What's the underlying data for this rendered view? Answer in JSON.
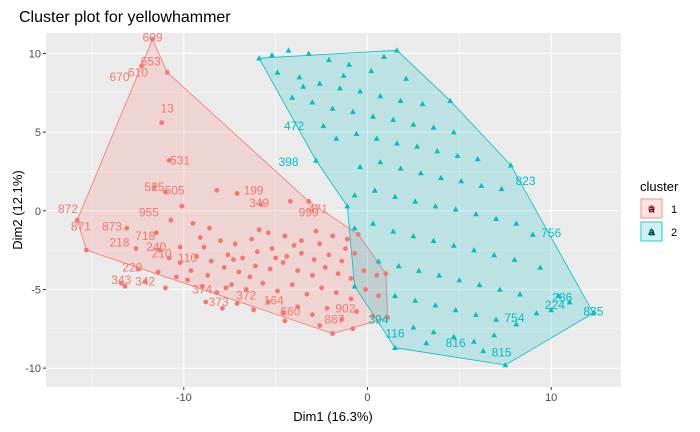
{
  "chart_data": {
    "type": "scatter",
    "title": "Cluster plot for yellowhammer",
    "xlabel": "Dim1 (16.3%)",
    "ylabel": "Dim2 (12.1%)",
    "xlim": [
      -17.5,
      13.8
    ],
    "ylim": [
      -11.2,
      11.3
    ],
    "xticks": [
      -10,
      0,
      10
    ],
    "yticks": [
      -10,
      -5,
      0,
      5,
      10
    ],
    "grid": true,
    "legend": {
      "title": "cluster",
      "position": "right",
      "entries": [
        "1",
        "2"
      ]
    },
    "colors": {
      "cluster1": "#F8766D",
      "cluster2": "#00BFC4",
      "panel": "#EBEBEB",
      "grid": "#FFFFFF"
    },
    "hulls": [
      {
        "cluster": "1",
        "points": [
          [
            -15.8,
            -0.6
          ],
          [
            -11.7,
            10.9
          ],
          [
            -10.9,
            8.8
          ],
          [
            -3.2,
            0.6
          ],
          [
            -0.5,
            -1.5
          ],
          [
            1.0,
            -4.0
          ],
          [
            1.1,
            -6.8
          ],
          [
            -1.9,
            -7.8
          ],
          [
            -15.3,
            -2.5
          ]
        ]
      },
      {
        "cluster": "2",
        "points": [
          [
            -5.9,
            9.7
          ],
          [
            1.6,
            10.2
          ],
          [
            4.5,
            7.0
          ],
          [
            7.8,
            2.9
          ],
          [
            12.3,
            -6.5
          ],
          [
            7.5,
            -9.8
          ],
          [
            1.5,
            -8.7
          ],
          [
            -0.7,
            -4.8
          ],
          [
            -1.1,
            0.3
          ],
          [
            -2.8,
            3.2
          ]
        ]
      }
    ],
    "series": [
      {
        "name": "1",
        "shape": "circle",
        "points": [
          [
            -15.8,
            -0.6
          ],
          [
            -11.7,
            10.9
          ],
          [
            -10.9,
            8.8
          ],
          [
            -12.3,
            9.2
          ],
          [
            -11.2,
            5.6
          ],
          [
            -10.8,
            3.2
          ],
          [
            -11.6,
            1.5
          ],
          [
            -11.0,
            1.2
          ],
          [
            -10.1,
            0.3
          ],
          [
            -8.2,
            1.3
          ],
          [
            -7.1,
            1.1
          ],
          [
            -5.8,
            0.4
          ],
          [
            -4.2,
            0.6
          ],
          [
            -3.2,
            0.6
          ],
          [
            -13.1,
            -1.1
          ],
          [
            -11.5,
            -1.4
          ],
          [
            -10.7,
            -0.6
          ],
          [
            -9.5,
            -0.8
          ],
          [
            -8.6,
            -1.1
          ],
          [
            -15.3,
            -2.5
          ],
          [
            -12.6,
            -2.4
          ],
          [
            -11.3,
            -2.5
          ],
          [
            -10.2,
            -2.3
          ],
          [
            -9.1,
            -1.7
          ],
          [
            -8.0,
            -1.9
          ],
          [
            -7.2,
            -2.1
          ],
          [
            -6.3,
            -1.8
          ],
          [
            -5.4,
            -1.4
          ],
          [
            -4.5,
            -1.6
          ],
          [
            -3.6,
            -1.9
          ],
          [
            -2.8,
            -1.3
          ],
          [
            -1.9,
            -1.6
          ],
          [
            -1.1,
            -1.8
          ],
          [
            -0.5,
            -1.5
          ],
          [
            -12.5,
            -3.7
          ],
          [
            -11.4,
            -3.9
          ],
          [
            -10.2,
            -3.3
          ],
          [
            -9.3,
            -2.9
          ],
          [
            -8.5,
            -3.2
          ],
          [
            -7.6,
            -2.8
          ],
          [
            -6.8,
            -3.0
          ],
          [
            -6.0,
            -2.6
          ],
          [
            -5.2,
            -2.4
          ],
          [
            -4.4,
            -2.9
          ],
          [
            -3.6,
            -2.7
          ],
          [
            -2.9,
            -3.1
          ],
          [
            -2.1,
            -2.8
          ],
          [
            -1.4,
            -3.2
          ],
          [
            -0.7,
            -2.7
          ],
          [
            -13.4,
            -4.6
          ],
          [
            -12.1,
            -4.5
          ],
          [
            -10.4,
            -4.2
          ],
          [
            -9.6,
            -3.8
          ],
          [
            -8.7,
            -4.1
          ],
          [
            -7.8,
            -3.6
          ],
          [
            -7.0,
            -3.9
          ],
          [
            -6.1,
            -3.5
          ],
          [
            -5.3,
            -3.7
          ],
          [
            -4.6,
            -3.3
          ],
          [
            -3.8,
            -3.8
          ],
          [
            -3.0,
            -4.1
          ],
          [
            -2.3,
            -3.6
          ],
          [
            -1.6,
            -4.0
          ],
          [
            -0.9,
            -4.3
          ],
          [
            -0.2,
            -3.8
          ],
          [
            0.5,
            -4.1
          ],
          [
            1.0,
            -4.0
          ],
          [
            -13.2,
            -4.8
          ],
          [
            -11.0,
            -4.9
          ],
          [
            -9.0,
            -4.8
          ],
          [
            -8.2,
            -5.2
          ],
          [
            -7.4,
            -4.7
          ],
          [
            -6.6,
            -5.0
          ],
          [
            -5.7,
            -4.6
          ],
          [
            -4.9,
            -5.1
          ],
          [
            -4.1,
            -4.7
          ],
          [
            -3.3,
            -5.3
          ],
          [
            -2.5,
            -4.9
          ],
          [
            -1.7,
            -5.2
          ],
          [
            -0.9,
            -5.6
          ],
          [
            -0.1,
            -5.0
          ],
          [
            0.6,
            -5.4
          ],
          [
            -8.8,
            -5.8
          ],
          [
            -7.9,
            -6.2
          ],
          [
            -7.1,
            -5.9
          ],
          [
            -6.2,
            -6.3
          ],
          [
            -5.4,
            -5.8
          ],
          [
            -4.6,
            -6.5
          ],
          [
            -3.8,
            -6.1
          ],
          [
            -3.0,
            -6.6
          ],
          [
            -2.2,
            -6.2
          ],
          [
            -1.4,
            -6.9
          ],
          [
            -0.6,
            -6.4
          ],
          [
            0.3,
            -6.7
          ],
          [
            1.1,
            -6.8
          ],
          [
            -4.5,
            -7.0
          ],
          [
            -2.6,
            -7.3
          ],
          [
            -1.9,
            -7.8
          ],
          [
            -0.8,
            -7.5
          ],
          [
            -9.8,
            -4.4
          ],
          [
            -7.3,
            -3.1
          ],
          [
            -6.4,
            -4.2
          ],
          [
            -5.0,
            -3.0
          ],
          [
            -4.0,
            -2.2
          ],
          [
            -2.6,
            -2.1
          ],
          [
            -1.2,
            -2.4
          ],
          [
            -5.9,
            -1.2
          ],
          [
            -8.9,
            -2.3
          ],
          [
            -10.8,
            -3.0
          ],
          [
            -7.7,
            -4.9
          ]
        ],
        "labels": [
          {
            "text": "609",
            "x": -11.7,
            "y": 11.0
          },
          {
            "text": "653",
            "x": -11.8,
            "y": 9.5
          },
          {
            "text": "670",
            "x": -13.5,
            "y": 8.5
          },
          {
            "text": "610",
            "x": -12.5,
            "y": 8.8
          },
          {
            "text": "13",
            "x": -10.9,
            "y": 6.5
          },
          {
            "text": "531",
            "x": -10.2,
            "y": 3.2
          },
          {
            "text": "525",
            "x": -11.6,
            "y": 1.5
          },
          {
            "text": "505",
            "x": -10.5,
            "y": 1.3
          },
          {
            "text": "872",
            "x": -16.3,
            "y": 0.1
          },
          {
            "text": "871",
            "x": -15.6,
            "y": -1.0
          },
          {
            "text": "873",
            "x": -13.9,
            "y": -1.0
          },
          {
            "text": "218",
            "x": -13.5,
            "y": -2.0
          },
          {
            "text": "955",
            "x": -11.9,
            "y": -0.1
          },
          {
            "text": "718",
            "x": -12.1,
            "y": -1.6
          },
          {
            "text": "220",
            "x": -12.8,
            "y": -3.6
          },
          {
            "text": "343",
            "x": -13.4,
            "y": -4.4
          },
          {
            "text": "342",
            "x": -12.1,
            "y": -4.5
          },
          {
            "text": "240",
            "x": -11.5,
            "y": -2.3
          },
          {
            "text": "210",
            "x": -11.2,
            "y": -2.7
          },
          {
            "text": "199",
            "x": -6.2,
            "y": 1.3
          },
          {
            "text": "349",
            "x": -5.9,
            "y": 0.5
          },
          {
            "text": "110",
            "x": -9.8,
            "y": -3.0
          },
          {
            "text": "373",
            "x": -8.1,
            "y": -5.8
          },
          {
            "text": "372",
            "x": -6.6,
            "y": -5.4
          },
          {
            "text": "164",
            "x": -5.1,
            "y": -5.7
          },
          {
            "text": "902",
            "x": -1.2,
            "y": -6.2
          },
          {
            "text": "887",
            "x": -1.8,
            "y": -6.9
          },
          {
            "text": "999",
            "x": -3.2,
            "y": -0.1
          },
          {
            "text": "471",
            "x": -2.7,
            "y": 0.1
          },
          {
            "text": "374",
            "x": -9.0,
            "y": -5.0
          },
          {
            "text": "660",
            "x": -4.2,
            "y": -6.4
          }
        ]
      },
      {
        "name": "2",
        "shape": "triangle",
        "points": [
          [
            -5.9,
            9.7
          ],
          [
            -5.2,
            9.9
          ],
          [
            -4.3,
            10.2
          ],
          [
            -3.2,
            10.0
          ],
          [
            -2.1,
            9.6
          ],
          [
            -1.0,
            9.3
          ],
          [
            0.2,
            8.9
          ],
          [
            1.6,
            10.2
          ],
          [
            -4.9,
            8.8
          ],
          [
            -3.7,
            8.5
          ],
          [
            -2.6,
            8.1
          ],
          [
            -1.5,
            7.8
          ],
          [
            -0.4,
            7.6
          ],
          [
            0.7,
            7.3
          ],
          [
            1.8,
            7.0
          ],
          [
            3.0,
            6.8
          ],
          [
            4.5,
            7.0
          ],
          [
            -4.1,
            7.2
          ],
          [
            -3.0,
            6.9
          ],
          [
            -1.9,
            6.5
          ],
          [
            -0.8,
            6.3
          ],
          [
            0.3,
            6.0
          ],
          [
            1.4,
            5.8
          ],
          [
            2.5,
            5.5
          ],
          [
            3.6,
            5.3
          ],
          [
            4.7,
            5.0
          ],
          [
            -2.8,
            3.2
          ],
          [
            -1.7,
            4.6
          ],
          [
            -0.6,
            4.9
          ],
          [
            0.5,
            4.6
          ],
          [
            1.6,
            4.3
          ],
          [
            2.7,
            4.1
          ],
          [
            3.8,
            3.8
          ],
          [
            4.9,
            3.5
          ],
          [
            6.0,
            3.3
          ],
          [
            7.8,
            2.9
          ],
          [
            -1.1,
            0.3
          ],
          [
            -0.4,
            2.8
          ],
          [
            0.7,
            3.1
          ],
          [
            1.8,
            2.7
          ],
          [
            2.9,
            2.4
          ],
          [
            4.0,
            2.1
          ],
          [
            5.1,
            1.9
          ],
          [
            6.2,
            1.6
          ],
          [
            7.3,
            1.4
          ],
          [
            -0.7,
            1.0
          ],
          [
            0.4,
            1.3
          ],
          [
            1.5,
            0.9
          ],
          [
            2.6,
            0.6
          ],
          [
            3.7,
            0.3
          ],
          [
            4.8,
            0.1
          ],
          [
            5.9,
            -0.2
          ],
          [
            7.0,
            -0.5
          ],
          [
            8.1,
            -0.8
          ],
          [
            9.0,
            -1.5
          ],
          [
            -0.7,
            -1.1
          ],
          [
            0.3,
            -0.8
          ],
          [
            1.4,
            -1.3
          ],
          [
            2.5,
            -1.6
          ],
          [
            3.6,
            -1.9
          ],
          [
            4.7,
            -2.2
          ],
          [
            5.8,
            -2.5
          ],
          [
            6.9,
            -2.8
          ],
          [
            8.0,
            -3.1
          ],
          [
            9.4,
            -3.6
          ],
          [
            -0.7,
            -4.8
          ],
          [
            0.6,
            -3.2
          ],
          [
            1.7,
            -3.5
          ],
          [
            2.8,
            -3.8
          ],
          [
            3.9,
            -4.1
          ],
          [
            5.0,
            -4.4
          ],
          [
            6.1,
            -4.7
          ],
          [
            7.2,
            -5.0
          ],
          [
            8.3,
            -5.3
          ],
          [
            10.4,
            -5.4
          ],
          [
            12.3,
            -6.5
          ],
          [
            1.5,
            -5.4
          ],
          [
            2.6,
            -5.7
          ],
          [
            3.7,
            -6.0
          ],
          [
            4.8,
            -6.3
          ],
          [
            5.9,
            -6.6
          ],
          [
            7.0,
            -6.9
          ],
          [
            8.1,
            -7.2
          ],
          [
            9.2,
            -6.5
          ],
          [
            1.5,
            -8.7
          ],
          [
            2.5,
            -7.4
          ],
          [
            3.6,
            -7.7
          ],
          [
            4.7,
            -8.0
          ],
          [
            5.8,
            -8.3
          ],
          [
            6.9,
            -7.9
          ],
          [
            7.5,
            -9.8
          ],
          [
            6.3,
            -8.9
          ],
          [
            3.2,
            -8.4
          ],
          [
            11.0,
            -5.8
          ],
          [
            10.0,
            -6.3
          ],
          [
            -2.4,
            5.4
          ],
          [
            -3.5,
            7.9
          ],
          [
            -1.3,
            8.6
          ],
          [
            2.1,
            8.4
          ],
          [
            0.9,
            9.8
          ]
        ],
        "labels": [
          {
            "text": "472",
            "x": -4.0,
            "y": 5.4
          },
          {
            "text": "398",
            "x": -4.3,
            "y": 3.1
          },
          {
            "text": "823",
            "x": 8.6,
            "y": 1.9
          },
          {
            "text": "756",
            "x": 10.0,
            "y": -1.4
          },
          {
            "text": "116",
            "x": 1.5,
            "y": -7.8
          },
          {
            "text": "816",
            "x": 4.8,
            "y": -8.4
          },
          {
            "text": "815",
            "x": 7.3,
            "y": -9.0
          },
          {
            "text": "835",
            "x": 12.3,
            "y": -6.4
          },
          {
            "text": "754",
            "x": 8.0,
            "y": -6.8
          },
          {
            "text": "286",
            "x": 10.6,
            "y": -5.5
          },
          {
            "text": "394",
            "x": 0.6,
            "y": -6.9
          },
          {
            "text": "224",
            "x": 10.2,
            "y": -6.0
          }
        ]
      }
    ]
  }
}
